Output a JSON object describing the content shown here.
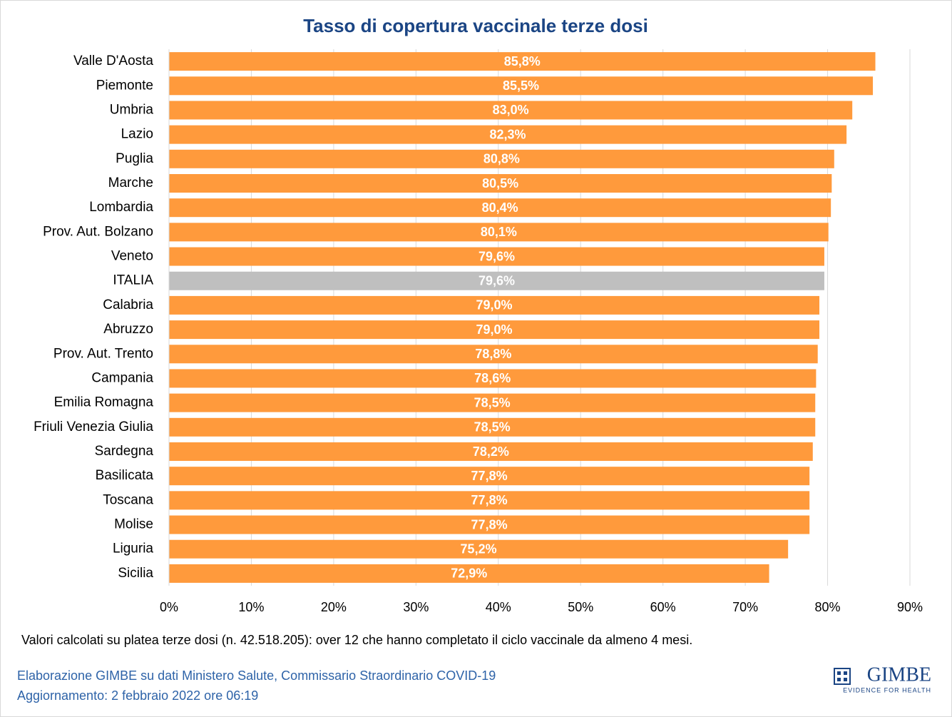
{
  "chart_data": {
    "type": "hbar",
    "title": "Tasso di copertura vaccinale terze dosi",
    "categories": [
      "Valle D'Aosta",
      "Piemonte",
      "Umbria",
      "Lazio",
      "Puglia",
      "Marche",
      "Lombardia",
      "Prov. Aut. Bolzano",
      "Veneto",
      "ITALIA",
      "Calabria",
      "Abruzzo",
      "Prov. Aut. Trento",
      "Campania",
      "Emilia Romagna",
      "Friuli Venezia Giulia",
      "Sardegna",
      "Basilicata",
      "Toscana",
      "Molise",
      "Liguria",
      "Sicilia"
    ],
    "values": [
      85.8,
      85.5,
      83.0,
      82.3,
      80.8,
      80.5,
      80.4,
      80.1,
      79.6,
      79.6,
      79.0,
      79.0,
      78.8,
      78.6,
      78.5,
      78.5,
      78.2,
      77.8,
      77.8,
      77.8,
      75.2,
      72.9
    ],
    "value_labels": [
      "85,8%",
      "85,5%",
      "83,0%",
      "82,3%",
      "80,8%",
      "80,5%",
      "80,4%",
      "80,1%",
      "79,6%",
      "79,6%",
      "79,0%",
      "79,0%",
      "78,8%",
      "78,6%",
      "78,5%",
      "78,5%",
      "78,2%",
      "77,8%",
      "77,8%",
      "77,8%",
      "75,2%",
      "72,9%"
    ],
    "colors": [
      "#FF9A3C",
      "#FF9A3C",
      "#FF9A3C",
      "#FF9A3C",
      "#FF9A3C",
      "#FF9A3C",
      "#FF9A3C",
      "#FF9A3C",
      "#FF9A3C",
      "#BFBFBF",
      "#FF9A3C",
      "#FF9A3C",
      "#FF9A3C",
      "#FF9A3C",
      "#FF9A3C",
      "#FF9A3C",
      "#FF9A3C",
      "#FF9A3C",
      "#FF9A3C",
      "#FF9A3C",
      "#FF9A3C",
      "#FF9A3C"
    ],
    "xlim": [
      0,
      90
    ],
    "xticks": [
      {
        "value": 0,
        "label": "0%"
      },
      {
        "value": 10,
        "label": "10%"
      },
      {
        "value": 20,
        "label": "20%"
      },
      {
        "value": 30,
        "label": "30%"
      },
      {
        "value": 40,
        "label": "40%"
      },
      {
        "value": 50,
        "label": "50%"
      },
      {
        "value": 60,
        "label": "60%"
      },
      {
        "value": 70,
        "label": "70%"
      },
      {
        "value": 80,
        "label": "80%"
      },
      {
        "value": 90,
        "label": "90%"
      }
    ],
    "grid": true,
    "note": "Valori calcolati su platea terze dosi (n. 42.518.205): over 12 che hanno completato il ciclo vaccinale da almeno 4 mesi.",
    "source": "Elaborazione GIMBE su dati Ministero Salute, Commissario Straordinario COVID-19",
    "updated": "Aggiornamento: 2 febbraio 2022 ore 06:19",
    "logo": "GIMBE",
    "logo_tagline": "EVIDENCE FOR HEALTH"
  }
}
